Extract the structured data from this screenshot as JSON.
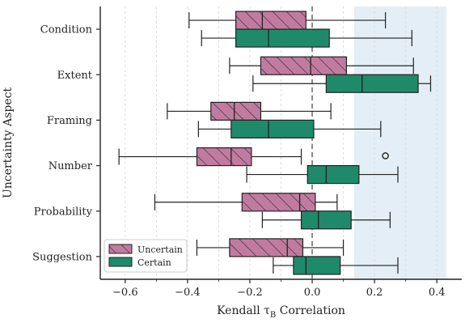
{
  "chart_data": {
    "type": "horizontal-box",
    "xlabel": "Kendall τ",
    "xlabel_sub": "B",
    "xlabel_tail": " Correlation",
    "ylabel": "Uncertainty Aspect",
    "xlim": [
      -0.68,
      0.48
    ],
    "xticks": [
      -0.6,
      -0.4,
      -0.2,
      0.0,
      0.2,
      0.4
    ],
    "xtick_labels": [
      "−0.6",
      "−0.4",
      "−0.2",
      "0.0",
      "0.2",
      "0.4"
    ],
    "grid": "vertical dashed",
    "reference_line_x": 0.0,
    "shaded_region": [
      0.135,
      0.43
    ],
    "shaded_color": "#e3eef6",
    "legend_position": "lower-left",
    "categories": [
      "Condition",
      "Extent",
      "Framing",
      "Number",
      "Probability",
      "Suggestion"
    ],
    "series": [
      {
        "name": "Uncertain",
        "color": "#c27ba0",
        "hatch": true,
        "boxes": [
          {
            "whislo": -0.395,
            "q1": -0.245,
            "med": -0.16,
            "q3": -0.02,
            "whishi": 0.235
          },
          {
            "whislo": -0.265,
            "q1": -0.165,
            "med": -0.005,
            "q3": 0.11,
            "whishi": 0.325
          },
          {
            "whislo": -0.465,
            "q1": -0.325,
            "med": -0.25,
            "q3": -0.165,
            "whishi": 0.06
          },
          {
            "whislo": -0.62,
            "q1": -0.37,
            "med": -0.26,
            "q3": -0.195,
            "whishi": -0.035
          },
          {
            "whislo": -0.505,
            "q1": -0.225,
            "med": -0.04,
            "q3": 0.01,
            "whishi": 0.08
          },
          {
            "whislo": -0.37,
            "q1": -0.265,
            "med": -0.08,
            "q3": -0.03,
            "whishi": 0.1
          }
        ]
      },
      {
        "name": "Certain",
        "color": "#1f8a6a",
        "hatch": false,
        "boxes": [
          {
            "whislo": -0.355,
            "q1": -0.245,
            "med": -0.14,
            "q3": 0.055,
            "whishi": 0.32
          },
          {
            "whislo": -0.19,
            "q1": 0.045,
            "med": 0.16,
            "q3": 0.34,
            "whishi": 0.38
          },
          {
            "whislo": -0.365,
            "q1": -0.26,
            "med": -0.14,
            "q3": 0.005,
            "whishi": 0.22
          },
          {
            "whislo": -0.21,
            "q1": -0.015,
            "med": 0.045,
            "q3": 0.15,
            "whishi": 0.275,
            "fliers": [
              0.235
            ]
          },
          {
            "whislo": -0.16,
            "q1": -0.035,
            "med": 0.02,
            "q3": 0.125,
            "whishi": 0.25
          },
          {
            "whislo": -0.125,
            "q1": -0.06,
            "med": -0.02,
            "q3": 0.09,
            "whishi": 0.275
          }
        ]
      }
    ]
  }
}
